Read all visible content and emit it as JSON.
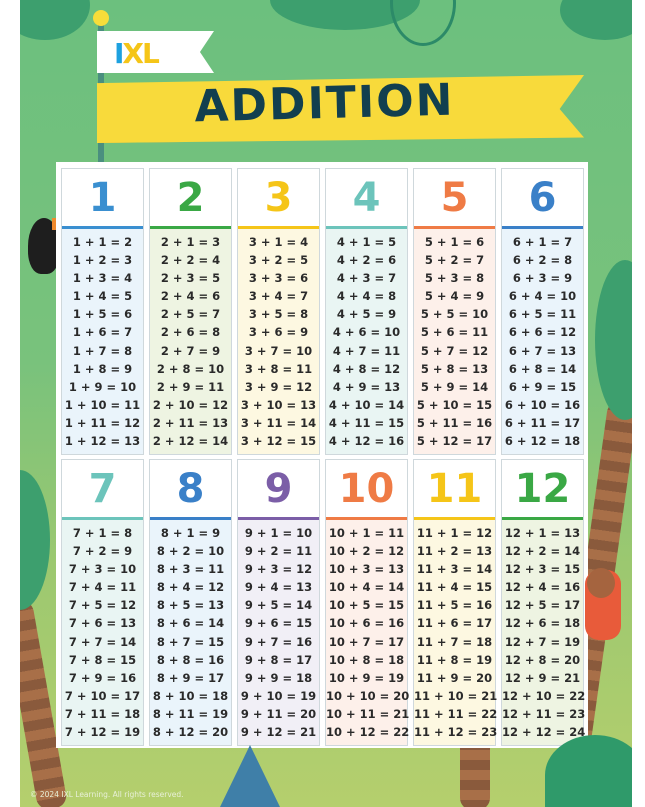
{
  "logo": {
    "text_i": "I",
    "text_xl": "XL"
  },
  "title": "ADDITION",
  "copyright": "© 2024 IXL Learning. All rights reserved.",
  "colors": {
    "blue": "#3a8fd0",
    "green": "#3aa845",
    "yellow": "#f5c518",
    "teal": "#6cc4bb",
    "orange": "#ef7b45",
    "purple": "#7b5ea7",
    "title": "#123f4f",
    "banner": "#f8da3b"
  },
  "cards": [
    {
      "number": "1",
      "color": "#3a8fd0",
      "tint": "#eaf4fb",
      "rows": [
        "1 + 1 = 2",
        "1 + 2 = 3",
        "1 + 3 = 4",
        "1 + 4 = 5",
        "1 + 5 = 6",
        "1 + 6 = 7",
        "1 + 7 = 8",
        "1 + 8 = 9",
        "1 + 9 = 10",
        "1 + 10 = 11",
        "1 + 11 = 12",
        "1 + 12 = 13"
      ]
    },
    {
      "number": "2",
      "color": "#3aa845",
      "tint": "#eef4e2",
      "rows": [
        "2 + 1 = 3",
        "2 + 2 = 4",
        "2 + 3 = 5",
        "2 + 4 = 6",
        "2 + 5 = 7",
        "2 + 6 = 8",
        "2 + 7 = 9",
        "2 + 8 = 10",
        "2 + 9 = 11",
        "2 + 10 = 12",
        "2 + 11 = 13",
        "2 + 12 = 14"
      ]
    },
    {
      "number": "3",
      "color": "#f5c518",
      "tint": "#fdf8e1",
      "rows": [
        "3 + 1 = 4",
        "3 + 2 = 5",
        "3 + 3 = 6",
        "3 + 4 = 7",
        "3 + 5 = 8",
        "3 + 6 = 9",
        "3 + 7 = 10",
        "3 + 8 = 11",
        "3 + 9 = 12",
        "3 + 10 = 13",
        "3 + 11 = 14",
        "3 + 12 = 15"
      ]
    },
    {
      "number": "4",
      "color": "#6cc4bb",
      "tint": "#e9f5f3",
      "rows": [
        "4 + 1 = 5",
        "4 + 2 = 6",
        "4 + 3 = 7",
        "4 + 4 = 8",
        "4 + 5 = 9",
        "4 + 6 = 10",
        "4 + 7 = 11",
        "4 + 8 = 12",
        "4 + 9 = 13",
        "4 + 10 = 14",
        "4 + 11 = 15",
        "4 + 12 = 16"
      ]
    },
    {
      "number": "5",
      "color": "#ef7b45",
      "tint": "#fdf0ea",
      "rows": [
        "5 + 1 = 6",
        "5 + 2 = 7",
        "5 + 3 = 8",
        "5 + 4 = 9",
        "5 + 5 = 10",
        "5 + 6 = 11",
        "5 + 7 = 12",
        "5 + 8 = 13",
        "5 + 9 = 14",
        "5 + 10 = 15",
        "5 + 11 = 16",
        "5 + 12 = 17"
      ]
    },
    {
      "number": "6",
      "color": "#3a80c8",
      "tint": "#eaf4fb",
      "rows": [
        "6 + 1 = 7",
        "6 + 2 = 8",
        "6 + 3 = 9",
        "6 + 4 = 10",
        "6 + 5 = 11",
        "6 + 6 = 12",
        "6 + 7 = 13",
        "6 + 8 = 14",
        "6 + 9 = 15",
        "6 + 10 = 16",
        "6 + 11 = 17",
        "6 + 12 = 18"
      ]
    },
    {
      "number": "7",
      "color": "#6cc4bb",
      "tint": "#e9f5f3",
      "rows": [
        "7 + 1 = 8",
        "7 + 2 = 9",
        "7 + 3 = 10",
        "7 + 4 = 11",
        "7 + 5 = 12",
        "7 + 6 = 13",
        "7 + 7 = 14",
        "7 + 8 = 15",
        "7 + 9 = 16",
        "7 + 10 = 17",
        "7 + 11 = 18",
        "7 + 12 = 19"
      ]
    },
    {
      "number": "8",
      "color": "#3a80c8",
      "tint": "#eaf4fb",
      "rows": [
        "8 + 1 = 9",
        "8 + 2 = 10",
        "8 + 3 = 11",
        "8 + 4 = 12",
        "8 + 5 = 13",
        "8 + 6 = 14",
        "8 + 7 = 15",
        "8 + 8 = 16",
        "8 + 9 = 17",
        "8 + 10 = 18",
        "8 + 11 = 19",
        "8 + 12 = 20"
      ]
    },
    {
      "number": "9",
      "color": "#7b5ea7",
      "tint": "#f1eff6",
      "rows": [
        "9 + 1 = 10",
        "9 + 2 = 11",
        "9 + 3 = 12",
        "9 + 4 = 13",
        "9 + 5 = 14",
        "9 + 6 = 15",
        "9 + 7 = 16",
        "9 + 8 = 17",
        "9 + 9 = 18",
        "9 + 10 = 19",
        "9 + 11 = 20",
        "9 + 12 = 21"
      ]
    },
    {
      "number": "10",
      "color": "#ef7b45",
      "tint": "#fdf0ea",
      "rows": [
        "10 + 1 = 11",
        "10 + 2 = 12",
        "10 + 3 = 13",
        "10 + 4 = 14",
        "10 + 5 = 15",
        "10 + 6 = 16",
        "10 + 7 = 17",
        "10 + 8 = 18",
        "10 + 9 = 19",
        "10 + 10 = 20",
        "10 + 11 = 21",
        "10 + 12 = 22"
      ]
    },
    {
      "number": "11",
      "color": "#f5c518",
      "tint": "#fdf8e1",
      "rows": [
        "11 + 1 = 12",
        "11 + 2 = 13",
        "11 + 3 = 14",
        "11 + 4 = 15",
        "11 + 5 = 16",
        "11 + 6 = 17",
        "11 + 7 = 18",
        "11 + 8 = 19",
        "11 + 9 = 20",
        "11 + 10 = 21",
        "11 + 11 = 22",
        "11 + 12 = 23"
      ]
    },
    {
      "number": "12",
      "color": "#3aa845",
      "tint": "#eef4e2",
      "rows": [
        "12 + 1 = 13",
        "12 + 2 = 14",
        "12 + 3 = 15",
        "12 + 4 = 16",
        "12 + 5 = 17",
        "12 + 6 = 18",
        "12 + 7 = 19",
        "12 + 8 = 20",
        "12 + 9 = 21",
        "12 + 10 = 22",
        "12 + 11 = 23",
        "12 + 12 = 24"
      ]
    }
  ]
}
